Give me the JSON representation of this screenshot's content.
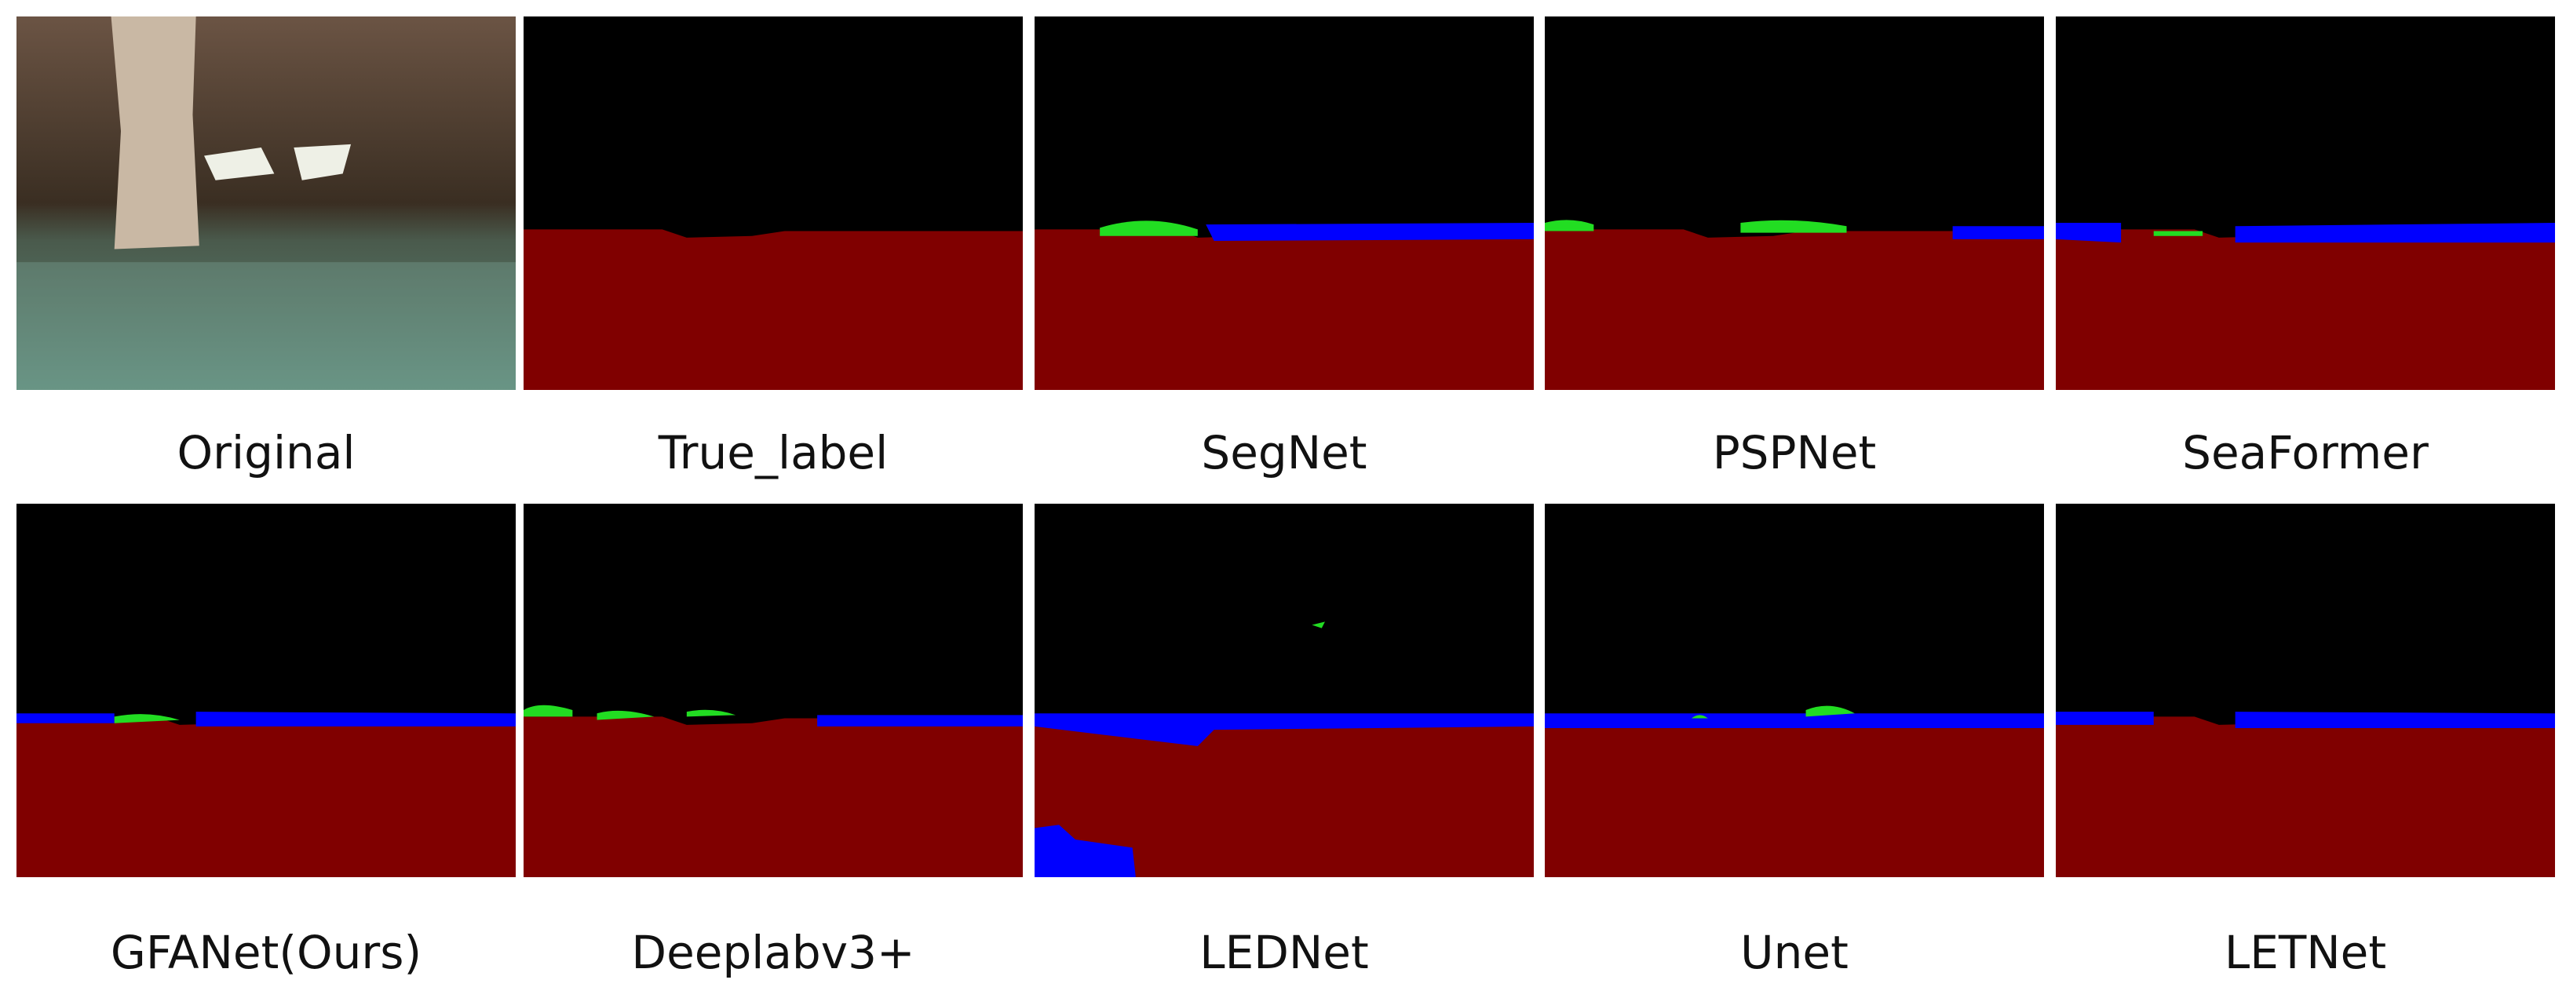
{
  "labels": [
    "Original",
    "True_label",
    "SegNet",
    "PSPNet",
    "SeaFormer",
    "GFANet(Ours)",
    "Deeplabv3+",
    "LEDNet",
    "Unet",
    "LETNet"
  ]
}
